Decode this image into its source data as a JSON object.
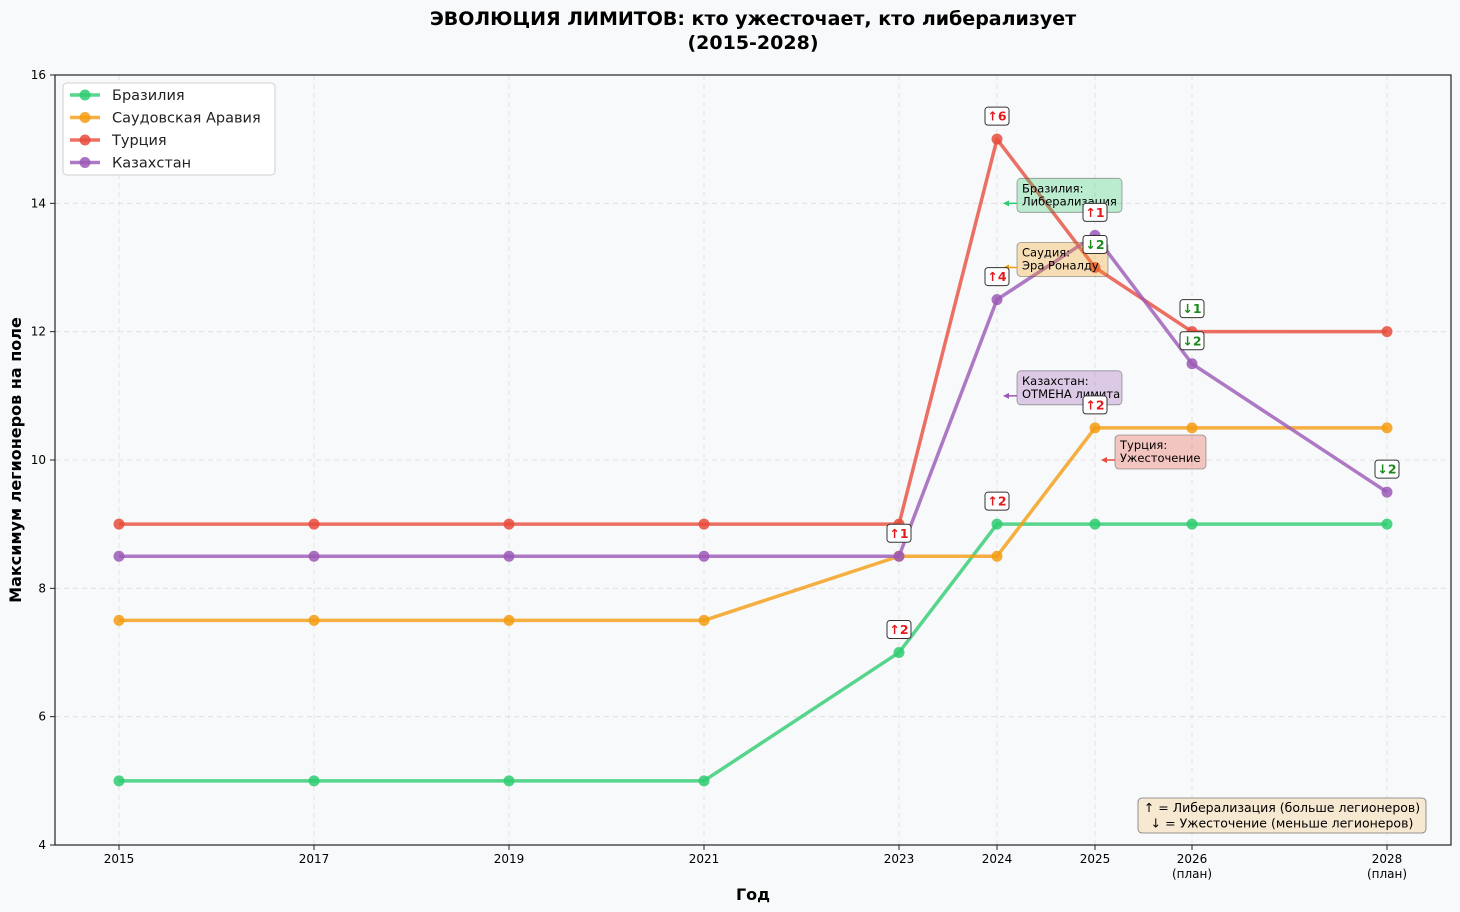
{
  "chart_data": {
    "type": "line",
    "title": "ЭВОЛЮЦИЯ ЛИМИТОВ: кто ужесточает, кто либерализует",
    "subtitle": "(2015-2028)",
    "xlabel": "Год",
    "ylabel": "Максимум легионеров на поле",
    "ylim": [
      4,
      16
    ],
    "yticks": [
      4,
      6,
      8,
      10,
      12,
      14,
      16
    ],
    "x": [
      2015,
      2017,
      2019,
      2021,
      2023,
      2024,
      2025,
      2026,
      2028
    ],
    "xtick_labels": [
      [
        "2015"
      ],
      [
        "2017"
      ],
      [
        "2019"
      ],
      [
        "2021"
      ],
      [
        "2023"
      ],
      [
        "2024"
      ],
      [
        "2025"
      ],
      [
        "2026",
        "(план)"
      ],
      [
        "2028",
        "(план)"
      ]
    ],
    "grid": true,
    "legend_position": "top-left",
    "series": [
      {
        "name": "Бразилия",
        "color": "#2ecc71",
        "values": [
          5,
          5,
          5,
          5,
          7,
          9,
          9,
          9,
          9
        ]
      },
      {
        "name": "Саудовская Аравия",
        "color": "#f39c12",
        "values": [
          7.5,
          7.5,
          7.5,
          7.5,
          8.5,
          8.5,
          10.5,
          10.5,
          10.5
        ]
      },
      {
        "name": "Турция",
        "color": "#e74c3c",
        "values": [
          9,
          9,
          9,
          9,
          9,
          15,
          13,
          12,
          12
        ]
      },
      {
        "name": "Казахстан",
        "color": "#9b59b6",
        "values": [
          8.5,
          8.5,
          8.5,
          8.5,
          8.5,
          12.5,
          13.5,
          11.5,
          9.5
        ]
      }
    ],
    "change_badges": [
      {
        "x": 2023,
        "y": 7,
        "text": "↑2",
        "direction": "up"
      },
      {
        "x": 2023,
        "y": 8.5,
        "text": "↑1",
        "direction": "up"
      },
      {
        "x": 2024,
        "y": 9,
        "text": "↑2",
        "direction": "up"
      },
      {
        "x": 2024,
        "y": 12.5,
        "text": "↑4",
        "direction": "up"
      },
      {
        "x": 2024,
        "y": 15,
        "text": "↑6",
        "direction": "up"
      },
      {
        "x": 2025,
        "y": 10.5,
        "text": "↑2",
        "direction": "up"
      },
      {
        "x": 2025,
        "y": 13.5,
        "text": "↑1",
        "direction": "up"
      },
      {
        "x": 2025,
        "y": 13,
        "text": "↓2",
        "direction": "down"
      },
      {
        "x": 2026,
        "y": 12,
        "text": "↓1",
        "direction": "down"
      },
      {
        "x": 2026,
        "y": 11.5,
        "text": "↓2",
        "direction": "down"
      },
      {
        "x": 2028,
        "y": 9.5,
        "text": "↓2",
        "direction": "down"
      }
    ],
    "annotations": [
      {
        "lines": [
          "Бразилия:",
          "Либерализация"
        ],
        "x": 2024,
        "y": 14,
        "color": "#2ecc71"
      },
      {
        "lines": [
          "Саудия:",
          "Эра Роналду"
        ],
        "x": 2024,
        "y": 13,
        "color": "#f39c12"
      },
      {
        "lines": [
          "Казахстан:",
          "ОТМЕНА лимита"
        ],
        "x": 2024,
        "y": 11,
        "color": "#9b59b6"
      },
      {
        "lines": [
          "Турция:",
          "Ужесточение"
        ],
        "x": 2025,
        "y": 10,
        "color": "#e74c3c"
      }
    ],
    "note_lines": [
      "↑ = Либерализация (больше легионеров)",
      "↓ = Ужесточение (меньше легионеров)"
    ],
    "colors": {
      "up": "#e31a1c",
      "down": "#1a8a1a"
    }
  }
}
